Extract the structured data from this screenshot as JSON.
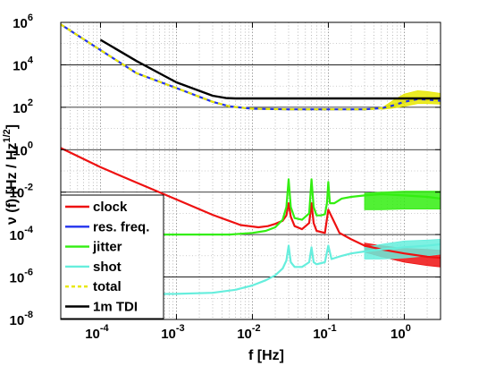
{
  "chart_data": {
    "type": "line",
    "xscale": "log",
    "yscale": "log",
    "xlim": [
      3e-05,
      3
    ],
    "ylim": [
      1e-08,
      1000000.0
    ],
    "xlabel": "f [Hz]",
    "ylabel_main": "ν (f) [Hz / Hz",
    "ylabel_exp": "1/2",
    "ylabel_close": "]",
    "grid": true,
    "legend_placement": "bottom-left",
    "x_ticks": [
      {
        "value": 0.0001,
        "base": "10",
        "exp": "-4"
      },
      {
        "value": 0.001,
        "base": "10",
        "exp": "-3"
      },
      {
        "value": 0.01,
        "base": "10",
        "exp": "-2"
      },
      {
        "value": 0.1,
        "base": "10",
        "exp": "-1"
      },
      {
        "value": 1,
        "base": "10",
        "exp": "0"
      }
    ],
    "y_ticks": [
      {
        "value": 1e-08,
        "base": "10",
        "exp": "-8"
      },
      {
        "value": 1e-06,
        "base": "10",
        "exp": "-6"
      },
      {
        "value": 0.0001,
        "base": "10",
        "exp": "-4"
      },
      {
        "value": 0.01,
        "base": "10",
        "exp": "-2"
      },
      {
        "value": 1,
        "base": "10",
        "exp": "0"
      },
      {
        "value": 100,
        "base": "10",
        "exp": "2"
      },
      {
        "value": 10000,
        "base": "10",
        "exp": "4"
      },
      {
        "value": 1000000.0,
        "base": "10",
        "exp": "6"
      }
    ],
    "series": [
      {
        "name": "clock",
        "color": "#ee1111",
        "width": 2.2,
        "dash": "",
        "x": [
          3e-05,
          0.0001,
          0.0003,
          0.001,
          0.003,
          0.007,
          0.012,
          0.016,
          0.02,
          0.025,
          0.028,
          0.03,
          0.032,
          0.036,
          0.045,
          0.056,
          0.06,
          0.064,
          0.07,
          0.09,
          0.1,
          0.14,
          0.2,
          0.3,
          0.5,
          1,
          2,
          3
        ],
        "y": [
          1.2,
          0.15,
          0.028,
          0.0045,
          0.00085,
          0.00028,
          0.00022,
          0.00025,
          0.00032,
          0.00045,
          0.0008,
          0.003,
          0.0007,
          0.00025,
          0.00018,
          0.00035,
          0.003,
          0.00035,
          0.00015,
          0.00012,
          0.0015,
          0.00012,
          6e-05,
          3e-05,
          2e-05,
          1.3e-05,
          9e-06,
          8e-06
        ]
      },
      {
        "name": "res. freq.",
        "color": "#2233ee",
        "width": 2.2,
        "dash": "",
        "x": [
          3e-05,
          0.0001,
          0.0003,
          0.001,
          0.003,
          0.005,
          0.01,
          0.03,
          0.1,
          0.2,
          0.3,
          0.5,
          0.7,
          1,
          1.5,
          2,
          3
        ],
        "y": [
          800000,
          50000,
          4000,
          800,
          180,
          110,
          85,
          80,
          80,
          80,
          80,
          90,
          120,
          180,
          240,
          230,
          200
        ]
      },
      {
        "name": "jitter",
        "color": "#33ee11",
        "width": 2.2,
        "dash": "",
        "x": [
          3e-05,
          0.001,
          0.005,
          0.01,
          0.015,
          0.02,
          0.025,
          0.028,
          0.03,
          0.032,
          0.036,
          0.045,
          0.056,
          0.06,
          0.064,
          0.07,
          0.08,
          0.09,
          0.096,
          0.1,
          0.105,
          0.12,
          0.15,
          0.2,
          0.3,
          0.5,
          1,
          2,
          3
        ],
        "y": [
          0.0001,
          0.0001,
          0.0001,
          0.00012,
          0.00015,
          0.00022,
          0.0005,
          0.002,
          0.04,
          0.002,
          0.0006,
          0.0005,
          0.001,
          0.04,
          0.002,
          0.0008,
          0.0008,
          0.0009,
          0.003,
          0.03,
          0.003,
          0.003,
          0.005,
          0.006,
          0.007,
          0.008,
          0.007,
          0.006,
          0.005
        ]
      },
      {
        "name": "shot",
        "color": "#66eedd",
        "width": 2.2,
        "dash": "",
        "x": [
          3e-05,
          0.001,
          0.003,
          0.006,
          0.01,
          0.015,
          0.02,
          0.025,
          0.028,
          0.03,
          0.032,
          0.036,
          0.045,
          0.056,
          0.06,
          0.064,
          0.07,
          0.09,
          0.1,
          0.11,
          0.15,
          0.2,
          0.3,
          0.5,
          1,
          2,
          3
        ],
        "y": [
          1.5e-07,
          1.6e-07,
          1.8e-07,
          2.5e-07,
          4e-07,
          7e-07,
          1.2e-06,
          2.5e-06,
          6e-06,
          3e-05,
          5e-06,
          3e-06,
          3e-06,
          5e-06,
          2.5e-05,
          5e-06,
          4e-06,
          5e-06,
          3e-05,
          7e-06,
          1e-05,
          1.3e-05,
          1.6e-05,
          2e-05,
          2.5e-05,
          3e-05,
          3.5e-05
        ]
      },
      {
        "name": "total",
        "color": "#e8e800",
        "width": 2.2,
        "dash": "5,4",
        "x": [
          3e-05,
          0.0001,
          0.0003,
          0.001,
          0.003,
          0.005,
          0.01,
          0.03,
          0.1,
          0.2,
          0.3,
          0.5,
          0.7,
          1,
          1.5,
          2,
          3
        ],
        "y": [
          800000,
          50000,
          4000,
          800,
          180,
          110,
          85,
          80,
          80,
          80,
          80,
          90,
          120,
          180,
          240,
          230,
          200
        ]
      },
      {
        "name": "1m TDI",
        "color": "#000000",
        "width": 2.4,
        "dash": "",
        "x": [
          0.0001,
          0.0003,
          0.001,
          0.003,
          0.0045,
          0.006,
          0.01,
          0.03,
          0.1,
          1,
          3
        ],
        "y": [
          150000,
          15000,
          1500,
          350,
          270,
          260,
          260,
          260,
          260,
          260,
          260
        ]
      }
    ],
    "bands": [
      {
        "series": "jitter",
        "color": "#33ee11",
        "x": [
          0.3,
          0.5,
          1,
          2,
          3
        ],
        "low": [
          0.0015,
          0.0015,
          0.0016,
          0.0016,
          0.0016
        ],
        "high": [
          0.009,
          0.01,
          0.011,
          0.011,
          0.011
        ]
      },
      {
        "series": "clock",
        "color": "#ee1111",
        "x": [
          0.3,
          0.5,
          1,
          2,
          3
        ],
        "low": [
          1.5e-05,
          9e-06,
          5e-06,
          3.5e-06,
          3e-06
        ],
        "high": [
          4e-05,
          3e-05,
          2.2e-05,
          2e-05,
          1.8e-05
        ]
      },
      {
        "series": "shot",
        "color": "#66eedd",
        "x": [
          0.3,
          0.5,
          1,
          2,
          3
        ],
        "low": [
          7e-06,
          7e-06,
          8e-06,
          1e-05,
          1.2e-05
        ],
        "high": [
          2.5e-05,
          3.5e-05,
          5e-05,
          5.5e-05,
          6e-05
        ]
      },
      {
        "series": "total",
        "color": "#e8e800",
        "x": [
          0.5,
          0.7,
          1,
          1.5,
          2,
          3
        ],
        "low": [
          80,
          90,
          110,
          150,
          150,
          140
        ],
        "high": [
          90,
          200,
          420,
          600,
          550,
          450
        ]
      }
    ]
  }
}
